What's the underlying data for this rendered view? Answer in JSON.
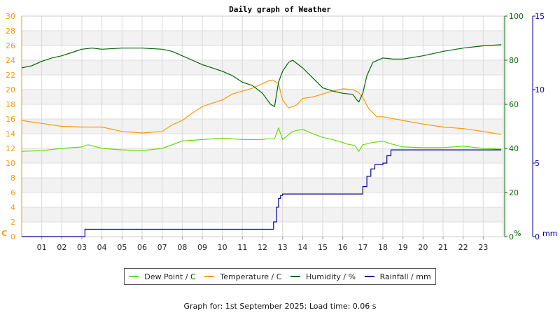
{
  "chart_data": {
    "type": "line",
    "title": "Daily graph of Weather",
    "footer": "Graph for: 1st September 2025; Load time: 0.06 s",
    "x_ticks": [
      "01",
      "02",
      "03",
      "04",
      "05",
      "06",
      "07",
      "08",
      "09",
      "10",
      "11",
      "12",
      "13",
      "14",
      "15",
      "16",
      "17",
      "18",
      "19",
      "20",
      "21",
      "22",
      "23"
    ],
    "xlim": [
      0,
      24
    ],
    "axes": {
      "temperature": {
        "unit": "C",
        "ticks": [
          0,
          2,
          4,
          6,
          8,
          10,
          12,
          14,
          16,
          18,
          20,
          22,
          24,
          26,
          28,
          30
        ],
        "ylim": [
          0,
          30
        ],
        "color": "#ff9900",
        "side": "left"
      },
      "humidity": {
        "unit": "%",
        "ticks": [
          0,
          20,
          40,
          60,
          80,
          100
        ],
        "ylim": [
          0,
          100
        ],
        "color": "#006600",
        "side": "right"
      },
      "rainfall": {
        "unit": "mm",
        "ticks": [
          0,
          5,
          10,
          15
        ],
        "ylim": [
          0,
          15
        ],
        "color": "#000099",
        "side": "right"
      }
    },
    "grid": true,
    "series": [
      {
        "name": "Dew Point / C",
        "axis": "temperature",
        "color": "#66dd00",
        "x": [
          0,
          1,
          2,
          3,
          3.3,
          4,
          5,
          6,
          7,
          8,
          9,
          10,
          11,
          12,
          12.2,
          12.6,
          12.8,
          13,
          13.5,
          14,
          14.5,
          15,
          15.5,
          16,
          16.2,
          16.6,
          16.8,
          17,
          17.5,
          18,
          18.3,
          19,
          20,
          21,
          22,
          23,
          23.9
        ],
        "values": [
          11.6,
          11.7,
          12.0,
          12.2,
          12.5,
          12.0,
          11.8,
          11.7,
          12.0,
          13.0,
          13.2,
          13.4,
          13.2,
          13.2,
          13.3,
          13.3,
          14.8,
          13.2,
          14.3,
          14.6,
          14.0,
          13.5,
          13.2,
          12.8,
          12.6,
          12.4,
          11.6,
          12.5,
          12.8,
          13.0,
          12.7,
          12.2,
          12.1,
          12.1,
          12.3,
          12.0,
          11.9
        ]
      },
      {
        "name": "Temperature / C",
        "axis": "temperature",
        "color": "#ff9900",
        "x": [
          0,
          1,
          2,
          3,
          4,
          5,
          6,
          7,
          7.5,
          8,
          8.5,
          9,
          10,
          10.5,
          11,
          11.5,
          12,
          12.3,
          12.5,
          12.8,
          13,
          13.3,
          13.7,
          14,
          14.5,
          15,
          15.5,
          16,
          16.5,
          16.8,
          17,
          17.3,
          17.7,
          18,
          19,
          20,
          21,
          22,
          23,
          23.9
        ],
        "values": [
          15.8,
          15.4,
          15.0,
          14.9,
          14.9,
          14.3,
          14.1,
          14.3,
          15.2,
          15.8,
          16.8,
          17.7,
          18.6,
          19.4,
          19.8,
          20.2,
          20.8,
          21.2,
          21.3,
          20.8,
          18.6,
          17.5,
          17.9,
          18.8,
          19.0,
          19.4,
          19.8,
          20.1,
          20.0,
          19.6,
          18.9,
          17.4,
          16.3,
          16.3,
          15.8,
          15.3,
          14.9,
          14.7,
          14.3,
          13.9
        ]
      },
      {
        "name": "Humidity / %",
        "axis": "humidity",
        "color": "#006600",
        "x": [
          0,
          0.5,
          1,
          1.5,
          2,
          2.5,
          3,
          3.5,
          4,
          5,
          6,
          7,
          7.5,
          8,
          8.5,
          9,
          10,
          10.5,
          11,
          11.5,
          12,
          12.4,
          12.6,
          12.8,
          13,
          13.3,
          13.5,
          14,
          14.5,
          15,
          15.5,
          16,
          16.5,
          16.7,
          16.8,
          17,
          17.2,
          17.5,
          18,
          18.5,
          19,
          20,
          21,
          22,
          23,
          23.9
        ],
        "values": [
          76.5,
          77.5,
          79.5,
          81,
          82,
          83.5,
          85,
          85.5,
          85,
          85.5,
          85.5,
          85,
          84,
          82,
          80,
          78,
          75,
          73,
          70,
          68.5,
          65,
          60,
          59,
          70,
          75,
          79,
          80,
          76.5,
          72,
          67.5,
          66,
          65,
          64.5,
          62,
          61,
          65,
          73,
          79,
          81,
          80.5,
          80.5,
          82,
          84,
          85.5,
          86.5,
          87
        ]
      },
      {
        "name": "Rainfall / mm",
        "axis": "rainfall",
        "color": "#000099",
        "x": [
          0,
          3.0,
          3.15,
          5,
          10,
          12.5,
          12.55,
          12.7,
          12.8,
          12.9,
          13,
          14,
          15,
          16,
          16.9,
          17.0,
          17.2,
          17.4,
          17.6,
          18.0,
          18.2,
          18.4,
          19,
          20,
          21,
          22,
          23,
          23.9
        ],
        "values": [
          0,
          0,
          0.5,
          0.5,
          0.5,
          0.5,
          1.0,
          2.0,
          2.6,
          2.8,
          2.9,
          2.9,
          2.9,
          2.9,
          2.9,
          3.4,
          4.1,
          4.6,
          4.9,
          5.0,
          5.5,
          5.9,
          5.9,
          5.9,
          5.9,
          5.9,
          5.9,
          5.9
        ]
      }
    ]
  }
}
